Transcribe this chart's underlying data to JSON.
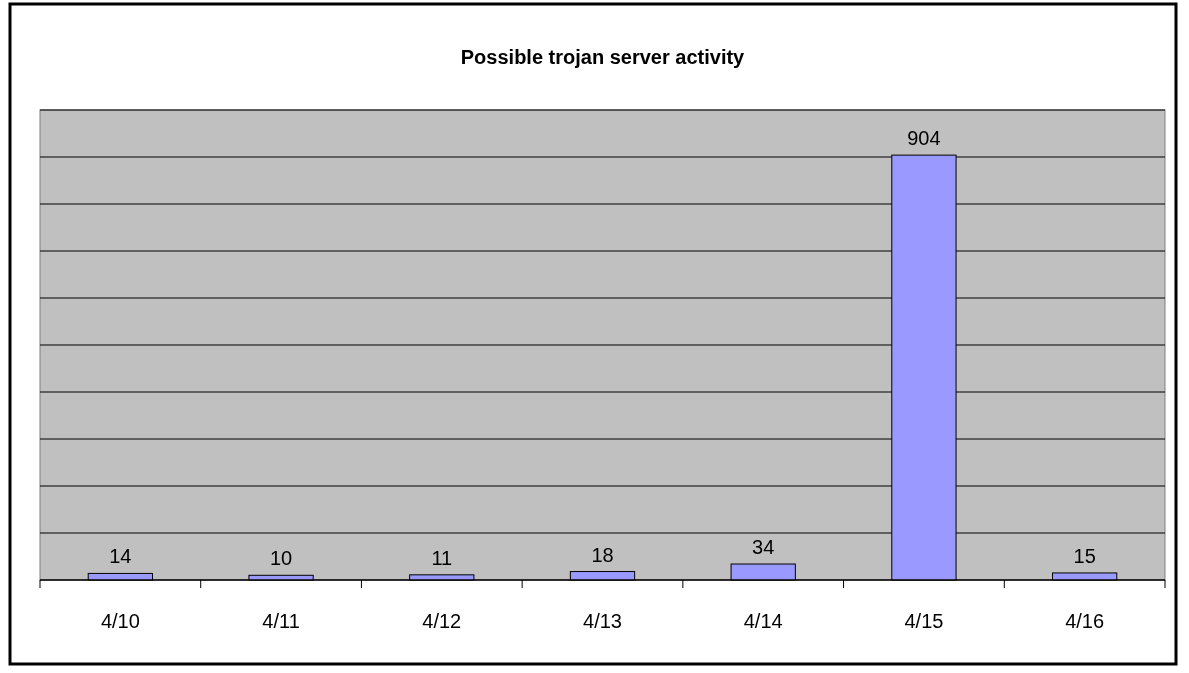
{
  "chart_data": {
    "type": "bar",
    "title": "Possible trojan server activity",
    "categories": [
      "4/10",
      "4/11",
      "4/12",
      "4/13",
      "4/14",
      "4/15",
      "4/16"
    ],
    "values": [
      14,
      10,
      11,
      18,
      34,
      904,
      15
    ],
    "color": "#9999ff",
    "ylim": [
      0,
      1000
    ],
    "yticks": [
      {
        "value": 0,
        "label": null
      },
      {
        "value": 100,
        "label": null
      },
      {
        "value": 200,
        "label": null
      },
      {
        "value": 300,
        "label": null
      },
      {
        "value": 400,
        "label": null
      },
      {
        "value": 500,
        "label": null
      },
      {
        "value": 600,
        "label": null
      },
      {
        "value": 700,
        "label": null
      },
      {
        "value": 800,
        "label": null
      },
      {
        "value": 900,
        "label": null
      },
      {
        "value": 1000,
        "label": null
      }
    ],
    "grid": true,
    "tick_labels": "x",
    "data_labels": true
  }
}
